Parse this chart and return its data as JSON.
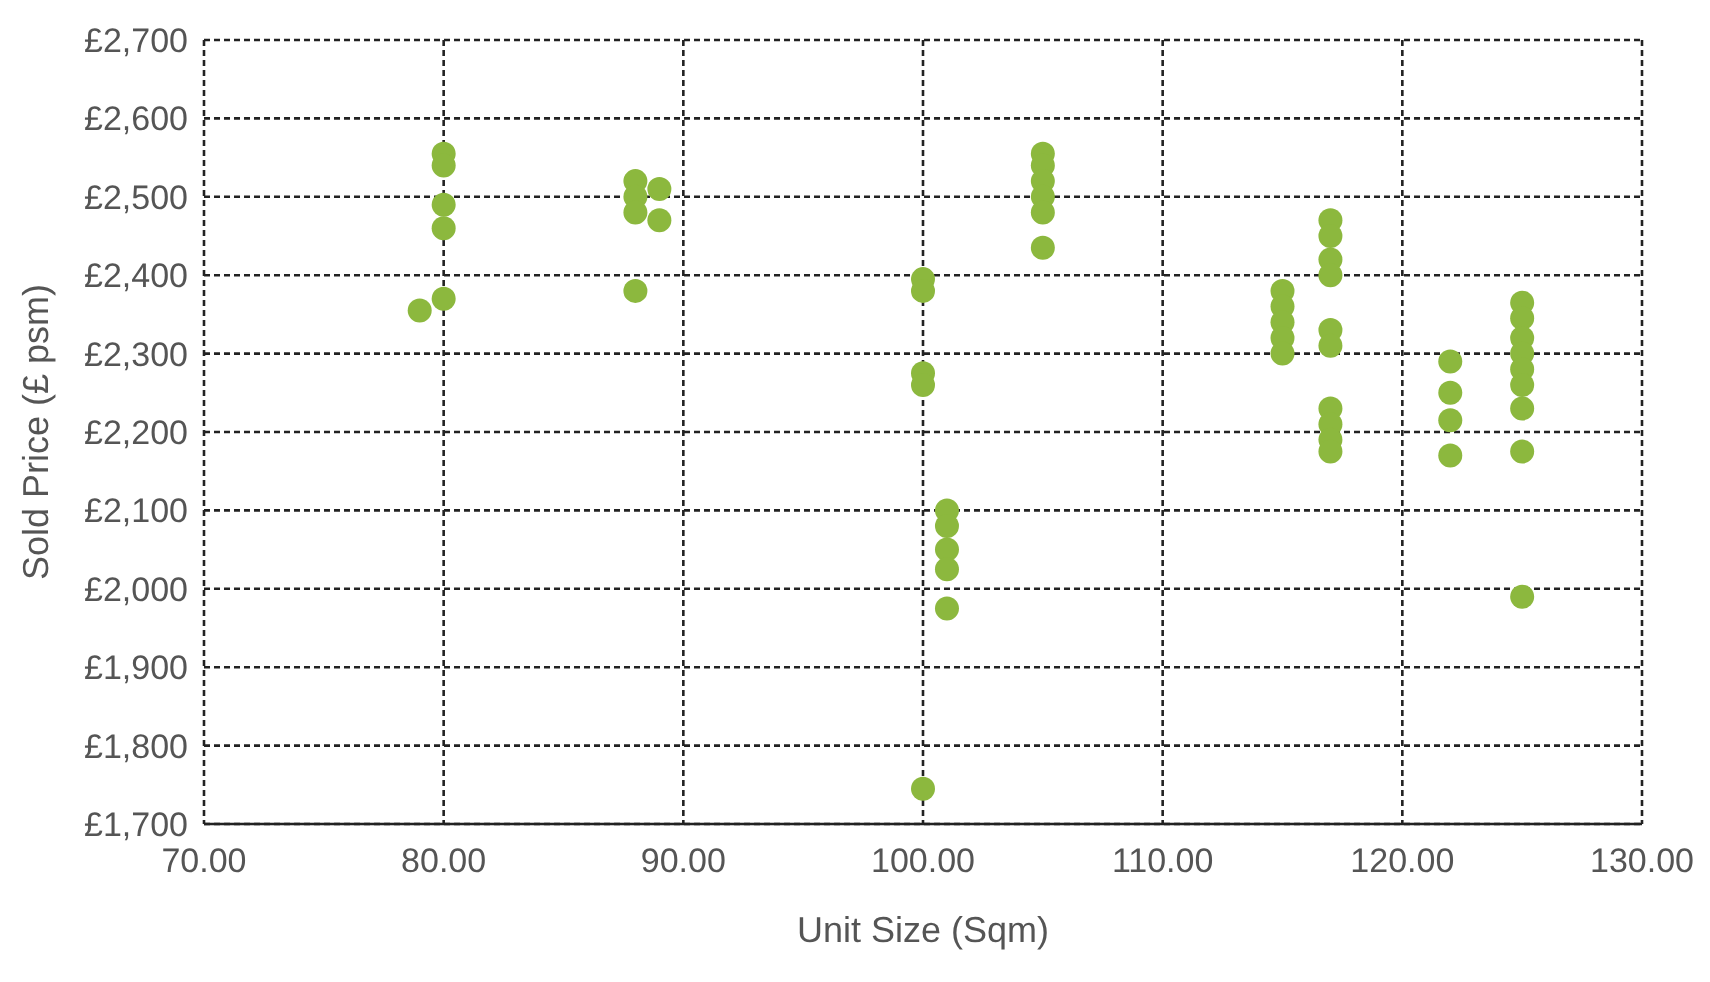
{
  "chart_data": {
    "type": "scatter",
    "xlabel": "Unit Size (Sqm)",
    "ylabel": "Sold Price (£ psm)",
    "x": [
      79,
      80,
      80,
      80,
      80,
      80,
      88,
      88,
      88,
      88,
      89,
      89,
      100,
      100,
      100,
      100,
      100,
      101,
      101,
      101,
      101,
      101,
      105,
      105,
      105,
      105,
      105,
      105,
      115,
      115,
      115,
      115,
      115,
      117,
      117,
      117,
      117,
      117,
      117,
      117,
      117,
      117,
      117,
      122,
      122,
      122,
      122,
      125,
      125,
      125,
      125,
      125,
      125,
      125,
      125,
      125
    ],
    "series": [
      {
        "color": "#8cb83e",
        "values": [
          2355,
          2555,
          2540,
          2490,
          2460,
          2370,
          2520,
          2500,
          2480,
          2380,
          2510,
          2470,
          2395,
          2380,
          2275,
          2260,
          1745,
          2100,
          2080,
          2050,
          2025,
          1975,
          2555,
          2540,
          2520,
          2500,
          2480,
          2435,
          2380,
          2360,
          2340,
          2320,
          2300,
          2470,
          2450,
          2420,
          2400,
          2330,
          2310,
          2230,
          2210,
          2190,
          2175,
          2290,
          2250,
          2215,
          2170,
          2365,
          2345,
          2320,
          2300,
          2280,
          2260,
          2230,
          2175,
          1990
        ]
      }
    ],
    "xlim": [
      70,
      130
    ],
    "ylim": [
      1700,
      2700
    ],
    "xticks": [
      {
        "value": 70,
        "label": "70.00"
      },
      {
        "value": 80,
        "label": "80.00"
      },
      {
        "value": 90,
        "label": "90.00"
      },
      {
        "value": 100,
        "label": "100.00"
      },
      {
        "value": 110,
        "label": "110.00"
      },
      {
        "value": 120,
        "label": "120.00"
      },
      {
        "value": 130,
        "label": "130.00"
      }
    ],
    "yticks": [
      {
        "value": 1700,
        "label": "£1,700"
      },
      {
        "value": 1800,
        "label": "£1,800"
      },
      {
        "value": 1900,
        "label": "£1,900"
      },
      {
        "value": 2000,
        "label": "£2,000"
      },
      {
        "value": 2100,
        "label": "£2,100"
      },
      {
        "value": 2200,
        "label": "£2,200"
      },
      {
        "value": 2300,
        "label": "£2,300"
      },
      {
        "value": 2400,
        "label": "£2,400"
      },
      {
        "value": 2500,
        "label": "£2,500"
      },
      {
        "value": 2600,
        "label": "£2,600"
      },
      {
        "value": 2700,
        "label": "£2,700"
      }
    ],
    "grid": true,
    "marker": "circle"
  }
}
